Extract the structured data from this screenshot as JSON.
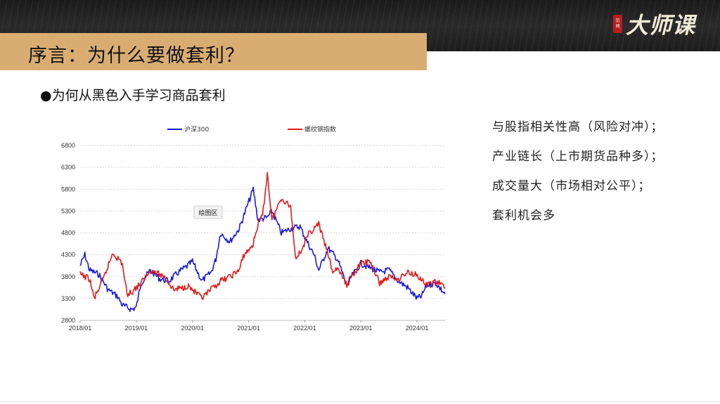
{
  "brand": {
    "logo_text": "大师课",
    "seal_text": "见闻"
  },
  "slide": {
    "title": "序言：为什么要做套利？",
    "subtitle": "●为何从黑色入手学习商品套利",
    "points": [
      "与股指相关性高（风险对冲）；",
      "产业链长（上市期货品种多）；",
      "成交量大（市场相对公平）；",
      "套利机会多"
    ]
  },
  "chart_data": {
    "type": "line",
    "tooltip": "绘图区",
    "x_ticks": [
      "2018/01",
      "2019/01",
      "2020/01",
      "2021/01",
      "2022/01",
      "2023/01",
      "2024/01"
    ],
    "xlim": [
      "2018/01",
      "2024/07"
    ],
    "y_ticks": [
      2800,
      3300,
      3800,
      4300,
      4800,
      5300,
      5800,
      6300,
      6800
    ],
    "ylim": [
      2800,
      6800
    ],
    "grid": true,
    "legend_position": "top",
    "series": [
      {
        "name": "沪深300",
        "color": "#1a1adb",
        "points": [
          [
            "2018/01",
            4050
          ],
          [
            "2018/02",
            4300
          ],
          [
            "2018/03",
            3950
          ],
          [
            "2018/05",
            3850
          ],
          [
            "2018/07",
            3500
          ],
          [
            "2018/09",
            3350
          ],
          [
            "2018/10",
            3150
          ],
          [
            "2018/12",
            3050
          ],
          [
            "2019/01",
            3100
          ],
          [
            "2019/02",
            3650
          ],
          [
            "2019/04",
            3950
          ],
          [
            "2019/06",
            3750
          ],
          [
            "2019/08",
            3700
          ],
          [
            "2019/10",
            3900
          ],
          [
            "2019/12",
            4050
          ],
          [
            "2020/01",
            4150
          ],
          [
            "2020/03",
            3700
          ],
          [
            "2020/05",
            3900
          ],
          [
            "2020/06",
            4200
          ],
          [
            "2020/07",
            4800
          ],
          [
            "2020/09",
            4600
          ],
          [
            "2020/11",
            4900
          ],
          [
            "2020/12",
            5200
          ],
          [
            "2021/02",
            5800
          ],
          [
            "2021/03",
            5100
          ],
          [
            "2021/05",
            5150
          ],
          [
            "2021/06",
            5300
          ],
          [
            "2021/08",
            4800
          ],
          [
            "2021/10",
            4900
          ],
          [
            "2021/12",
            4950
          ],
          [
            "2022/01",
            4700
          ],
          [
            "2022/03",
            4300
          ],
          [
            "2022/04",
            3950
          ],
          [
            "2022/06",
            4450
          ],
          [
            "2022/08",
            4200
          ],
          [
            "2022/10",
            3600
          ],
          [
            "2022/11",
            3800
          ],
          [
            "2023/01",
            4100
          ],
          [
            "2023/03",
            4000
          ],
          [
            "2023/05",
            3900
          ],
          [
            "2023/07",
            3950
          ],
          [
            "2023/09",
            3700
          ],
          [
            "2023/11",
            3550
          ],
          [
            "2024/01",
            3300
          ],
          [
            "2024/02",
            3350
          ],
          [
            "2024/03",
            3600
          ],
          [
            "2024/05",
            3650
          ],
          [
            "2024/07",
            3400
          ]
        ]
      },
      {
        "name": "螺纹钢指数",
        "color": "#e11b1b",
        "points": [
          [
            "2018/01",
            3850
          ],
          [
            "2018/03",
            3750
          ],
          [
            "2018/04",
            3300
          ],
          [
            "2018/06",
            3750
          ],
          [
            "2018/08",
            4350
          ],
          [
            "2018/10",
            4100
          ],
          [
            "2018/11",
            3400
          ],
          [
            "2018/12",
            3450
          ],
          [
            "2019/02",
            3650
          ],
          [
            "2019/04",
            3950
          ],
          [
            "2019/05",
            3900
          ],
          [
            "2019/07",
            3800
          ],
          [
            "2019/09",
            3500
          ],
          [
            "2019/11",
            3550
          ],
          [
            "2019/12",
            3600
          ],
          [
            "2020/01",
            3500
          ],
          [
            "2020/03",
            3300
          ],
          [
            "2020/05",
            3500
          ],
          [
            "2020/07",
            3700
          ],
          [
            "2020/09",
            3800
          ],
          [
            "2020/11",
            3950
          ],
          [
            "2020/12",
            4300
          ],
          [
            "2021/01",
            4400
          ],
          [
            "2021/02",
            4550
          ],
          [
            "2021/03",
            5000
          ],
          [
            "2021/04",
            5200
          ],
          [
            "2021/05",
            6150
          ],
          [
            "2021/06",
            5100
          ],
          [
            "2021/08",
            5600
          ],
          [
            "2021/10",
            5400
          ],
          [
            "2021/11",
            4250
          ],
          [
            "2021/12",
            4350
          ],
          [
            "2022/02",
            4800
          ],
          [
            "2022/04",
            5000
          ],
          [
            "2022/06",
            4300
          ],
          [
            "2022/07",
            3900
          ],
          [
            "2022/08",
            4000
          ],
          [
            "2022/10",
            3600
          ],
          [
            "2022/11",
            3800
          ],
          [
            "2023/01",
            4100
          ],
          [
            "2023/03",
            4150
          ],
          [
            "2023/05",
            3650
          ],
          [
            "2023/07",
            3800
          ],
          [
            "2023/09",
            3750
          ],
          [
            "2023/11",
            3900
          ],
          [
            "2024/01",
            3850
          ],
          [
            "2024/03",
            3600
          ],
          [
            "2024/05",
            3700
          ],
          [
            "2024/07",
            3550
          ]
        ]
      }
    ]
  }
}
